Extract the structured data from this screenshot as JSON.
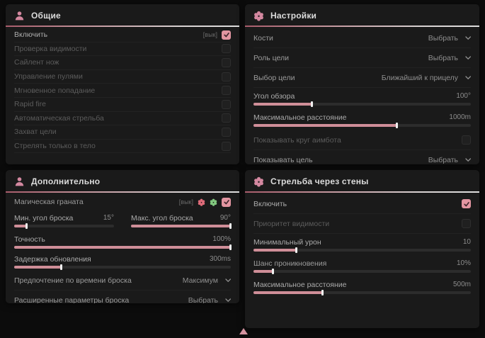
{
  "colors": {
    "accent_pink": "#e295a1",
    "slider_fill": "#cf8e98",
    "flower_red": "#e06c7a",
    "flower_green": "#82c77f",
    "panel_bg": "#1a1a1a",
    "page_bg": "#0c0c0c"
  },
  "cursor": {
    "shape": "triangle-up",
    "color": "#d493a0"
  },
  "panels": {
    "general": {
      "title": "Общие",
      "icon": "users-icon",
      "rows": [
        {
          "label": "Включить",
          "badge": "[вык]",
          "control": "checkbox",
          "checked": true
        },
        {
          "label": "Проверка видимости",
          "control": "checkbox",
          "checked": false
        },
        {
          "label": "Сайлент нож",
          "control": "checkbox",
          "checked": false
        },
        {
          "label": "Управление пулями",
          "control": "checkbox",
          "checked": false
        },
        {
          "label": "Мгновенное попадание",
          "control": "checkbox",
          "checked": false
        },
        {
          "label": "Rapid fire",
          "control": "checkbox",
          "checked": false
        },
        {
          "label": "Автоматическая стрельба",
          "control": "checkbox",
          "checked": false
        },
        {
          "label": "Захват цели",
          "control": "checkbox",
          "checked": false
        },
        {
          "label": "Стрелять только в тело",
          "control": "checkbox",
          "checked": false
        }
      ]
    },
    "settings": {
      "title": "Настройки",
      "icon": "gear-flower-icon",
      "rows": [
        {
          "label": "Кости",
          "control": "dropdown",
          "value": "Выбрать"
        },
        {
          "label": "Роль цели",
          "control": "dropdown",
          "value": "Выбрать"
        },
        {
          "label": "Выбор цели",
          "control": "dropdown",
          "value": "Ближайший к прицелу"
        },
        {
          "label": "Угол обзора",
          "control": "slider",
          "value": "100°",
          "fill": 27
        },
        {
          "label": "Максимальное расстояние",
          "control": "slider",
          "value": "1000m",
          "fill": 66
        },
        {
          "label": "Показывать круг аимбота",
          "control": "checkbox",
          "checked": false,
          "disabled": true
        },
        {
          "label": "Показывать цель",
          "control": "dropdown",
          "value": "Выбрать"
        }
      ]
    },
    "additional": {
      "title": "Дополнительно",
      "icon": "users-icon",
      "rows": [
        {
          "label": "Магическая граната",
          "badge": "[вык]",
          "control": "checkbox",
          "checked": true,
          "extra_icons": [
            "flower-red-icon",
            "flower-green-icon"
          ]
        },
        {
          "label": "Мин. угол броска",
          "control": "slider",
          "value": "15°",
          "fill": 13
        },
        {
          "label": "Макс. угол броска",
          "control": "slider",
          "value": "90°",
          "fill": 100
        },
        {
          "label": "Точность",
          "control": "slider",
          "value": "100%",
          "fill": 100
        },
        {
          "label": "Задержка обновления",
          "control": "slider",
          "value": "300ms",
          "fill": 22
        },
        {
          "label": "Предпочтение по времени броска",
          "control": "dropdown",
          "value": "Максимум"
        },
        {
          "label": "Расширенные параметры броска",
          "control": "dropdown",
          "value": "Выбрать"
        }
      ]
    },
    "wallbang": {
      "title": "Стрельба через стены",
      "icon": "gear-flower-icon",
      "rows": [
        {
          "label": "Включить",
          "control": "checkbox",
          "checked": true
        },
        {
          "label": "Приоритет видимости",
          "control": "checkbox",
          "checked": false,
          "disabled": true
        },
        {
          "label": "Минимальный урон",
          "control": "slider",
          "value": "10",
          "fill": 20
        },
        {
          "label": "Шанс проникновения",
          "control": "slider",
          "value": "10%",
          "fill": 9
        },
        {
          "label": "Максимальное расстояние",
          "control": "slider",
          "value": "500m",
          "fill": 32
        }
      ]
    }
  }
}
